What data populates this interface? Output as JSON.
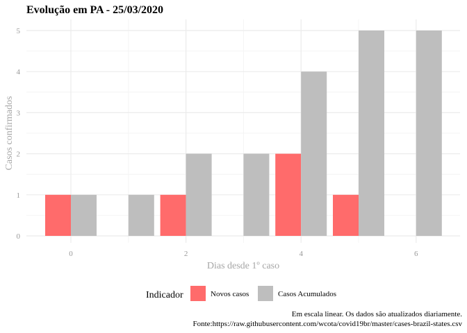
{
  "chart_data": {
    "type": "bar",
    "title": "Evolução em PA  -  25/03/2020",
    "xlabel": "Dias desde 1º caso",
    "ylabel": "Casos confirmados",
    "x": [
      0,
      1,
      2,
      3,
      4,
      5,
      6
    ],
    "xticks": [
      "0",
      "2",
      "4",
      "6"
    ],
    "yticks": [
      "0",
      "1",
      "2",
      "3",
      "4",
      "5"
    ],
    "xlim": [
      -0.5,
      6.5
    ],
    "ylim": [
      0,
      5
    ],
    "grid": true,
    "legend_title": "Indicador",
    "legend_position": "bottom",
    "series": [
      {
        "name": "Novos casos",
        "color": "#ff6b6b",
        "values": [
          1,
          0,
          1,
          0,
          2,
          1,
          0
        ]
      },
      {
        "name": "Casos Acumulados",
        "color": "#bebebe",
        "values": [
          1,
          1,
          2,
          2,
          4,
          5,
          5
        ]
      }
    ],
    "caption_lines": [
      "Em escala linear. Os dados são atualizados diariamente.",
      "Fonte:https://raw.githubusercontent.com/wcota/covid19br/master/cases-brazil-states.csv"
    ]
  }
}
